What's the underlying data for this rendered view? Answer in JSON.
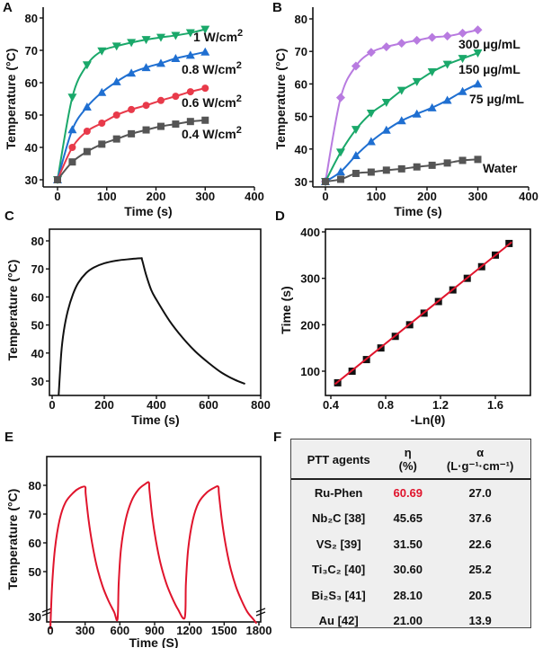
{
  "colors": {
    "green": "#1aa86a",
    "blue": "#1f6fd1",
    "red": "#e83a4a",
    "gray": "#555555",
    "purple": "#b87be0",
    "black": "#111111",
    "fit": "#e0142c",
    "highlight": "#e0142c"
  },
  "panel_labels": [
    "A",
    "B",
    "C",
    "D",
    "E",
    "F"
  ],
  "chart_data": [
    {
      "id": "A",
      "type": "line",
      "xlabel": "Time (s)",
      "ylabel": "Temperature (°C)",
      "xlim": [
        0,
        400
      ],
      "ylim": [
        30,
        80
      ],
      "xticks": [
        0,
        100,
        200,
        300,
        400
      ],
      "yticks": [
        30,
        40,
        50,
        60,
        70,
        80
      ],
      "x": [
        0,
        30,
        60,
        90,
        120,
        150,
        180,
        210,
        240,
        270,
        300
      ],
      "series": [
        {
          "name": "1 W/cm2",
          "color": "green",
          "marker": "tri-down",
          "values": [
            30,
            55.5,
            65.5,
            69.8,
            71.3,
            72.4,
            73.3,
            74,
            74.6,
            75.4,
            76.5
          ]
        },
        {
          "name": "0.8 W/cm2",
          "color": "blue",
          "marker": "tri-up",
          "values": [
            30,
            45.5,
            52.5,
            57,
            60.3,
            63,
            64.7,
            66,
            67.5,
            68.5,
            69.5
          ]
        },
        {
          "name": "0.6 W/cm2",
          "color": "red",
          "marker": "circle",
          "values": [
            30,
            40,
            45,
            47.5,
            50,
            51.7,
            53,
            54.5,
            55.8,
            57.2,
            58.3
          ]
        },
        {
          "name": "0.4 W/cm2",
          "color": "gray",
          "marker": "square",
          "values": [
            30,
            35.5,
            38.7,
            41,
            42.6,
            44.2,
            45.4,
            46.5,
            47.2,
            48,
            48.4
          ]
        }
      ]
    },
    {
      "id": "B",
      "type": "line",
      "xlabel": "Time (s)",
      "ylabel": "Temperature (°C)",
      "xlim": [
        0,
        400
      ],
      "ylim": [
        30,
        80
      ],
      "xticks": [
        0,
        100,
        200,
        300,
        400
      ],
      "yticks": [
        30,
        40,
        50,
        60,
        70,
        80
      ],
      "x": [
        0,
        30,
        60,
        90,
        120,
        150,
        180,
        210,
        240,
        270,
        300
      ],
      "series": [
        {
          "name": "300 µg/mL",
          "color": "purple",
          "marker": "diamond",
          "values": [
            30,
            55.8,
            65.5,
            69.7,
            71.4,
            72.5,
            73.4,
            74.3,
            74.7,
            75.6,
            76.6
          ]
        },
        {
          "name": "150 µg/mL",
          "color": "green",
          "marker": "tri-down",
          "values": [
            30,
            39,
            46,
            51,
            54.3,
            58,
            60.7,
            63.7,
            66,
            67.8,
            69.5
          ]
        },
        {
          "name": "75 µg/mL",
          "color": "blue",
          "marker": "tri-up",
          "values": [
            30,
            33,
            38,
            42.3,
            45.8,
            48.7,
            50.8,
            52.7,
            55,
            57.7,
            60
          ]
        },
        {
          "name": "Water",
          "color": "gray",
          "marker": "square",
          "values": [
            30,
            30.7,
            32.5,
            32.9,
            33.5,
            33.9,
            34.5,
            35,
            35.7,
            36.5,
            36.8
          ]
        }
      ]
    },
    {
      "id": "C",
      "type": "line",
      "xlabel": "Time (s)",
      "ylabel": "Temperature (°C)",
      "xlim": [
        0,
        800
      ],
      "ylim": [
        30,
        80
      ],
      "xticks": [
        0,
        200,
        400,
        600,
        800
      ],
      "yticks": [
        30,
        40,
        50,
        60,
        70,
        80
      ],
      "series": [
        {
          "name": "heating-cooling",
          "color": "black",
          "points": [
            [
              25,
              25
            ],
            [
              35,
              40
            ],
            [
              45,
              48
            ],
            [
              60,
              55
            ],
            [
              80,
              61
            ],
            [
              100,
              65
            ],
            [
              130,
              68.5
            ],
            [
              160,
              70.5
            ],
            [
              200,
              72
            ],
            [
              250,
              73
            ],
            [
              300,
              73.5
            ],
            [
              340,
              73.8
            ],
            [
              345,
              73.2
            ],
            [
              360,
              68
            ],
            [
              380,
              62.5
            ],
            [
              400,
              59
            ],
            [
              450,
              51.5
            ],
            [
              500,
              45.5
            ],
            [
              550,
              40.5
            ],
            [
              600,
              36.5
            ],
            [
              650,
              33
            ],
            [
              700,
              30.5
            ],
            [
              740,
              29
            ]
          ]
        }
      ]
    },
    {
      "id": "D",
      "type": "scatter",
      "xlabel": "-Ln(θ)",
      "ylabel": "Time (s)",
      "xlim": [
        0.36,
        1.82
      ],
      "ylim": [
        60,
        400
      ],
      "xticks": [
        0.4,
        0.8,
        1.2,
        1.6
      ],
      "yticks": [
        100,
        200,
        300,
        400
      ],
      "series": [
        {
          "name": "data",
          "color": "black",
          "marker": "square",
          "x": [
            0.45,
            0.555,
            0.66,
            0.765,
            0.87,
            0.975,
            1.08,
            1.185,
            1.29,
            1.395,
            1.5,
            1.6,
            1.7
          ],
          "values": [
            75,
            100,
            125,
            150,
            175,
            200,
            225,
            250,
            275,
            300,
            325,
            350,
            375
          ]
        },
        {
          "name": "linear fit",
          "color": "fit",
          "points": [
            [
              0.43,
              72
            ],
            [
              1.72,
              378
            ]
          ]
        }
      ]
    },
    {
      "id": "E",
      "type": "line",
      "xlabel": "Time (S)",
      "ylabel": "Temperature (°C)",
      "xlim": [
        0,
        1800
      ],
      "ylim": [
        30,
        80
      ],
      "xticks": [
        0,
        300,
        600,
        900,
        1200,
        1500,
        1800
      ],
      "yticks": [
        30,
        50,
        60,
        70,
        80
      ],
      "series": [
        {
          "name": "cycles",
          "color": "fit",
          "points": [
            [
              0,
              30
            ],
            [
              15,
              45
            ],
            [
              40,
              58
            ],
            [
              80,
              68
            ],
            [
              130,
              74
            ],
            [
              200,
              77.5
            ],
            [
              250,
              79
            ],
            [
              300,
              79.5
            ],
            [
              305,
              77
            ],
            [
              330,
              68
            ],
            [
              360,
              60
            ],
            [
              400,
              52
            ],
            [
              450,
              45
            ],
            [
              500,
              40
            ],
            [
              550,
              36
            ],
            [
              580,
              33.5
            ],
            [
              590,
              46
            ],
            [
              610,
              58
            ],
            [
              650,
              68
            ],
            [
              700,
              74.5
            ],
            [
              760,
              78.5
            ],
            [
              820,
              80.5
            ],
            [
              850,
              81
            ],
            [
              855,
              78.5
            ],
            [
              880,
              69
            ],
            [
              910,
              61
            ],
            [
              950,
              53
            ],
            [
              1000,
              46
            ],
            [
              1050,
              41
            ],
            [
              1100,
              37
            ],
            [
              1160,
              34
            ],
            [
              1170,
              46
            ],
            [
              1190,
              58
            ],
            [
              1230,
              68
            ],
            [
              1280,
              74
            ],
            [
              1350,
              77.5
            ],
            [
              1420,
              79.3
            ],
            [
              1450,
              79.5
            ],
            [
              1455,
              77
            ],
            [
              1480,
              68
            ],
            [
              1510,
              60
            ],
            [
              1550,
              52
            ],
            [
              1600,
              45
            ],
            [
              1650,
              40
            ],
            [
              1700,
              36
            ],
            [
              1750,
              33.5
            ],
            [
              1780,
              32
            ]
          ]
        }
      ]
    }
  ],
  "table": {
    "headers": [
      {
        "line1": "PTT agents",
        "line2": ""
      },
      {
        "line1": "η",
        "line2": "(%)"
      },
      {
        "line1": "α",
        "line2": "(L·g⁻¹·cm⁻¹)"
      }
    ],
    "rows": [
      {
        "agent": "Ru-Phen",
        "eta": "60.69",
        "alpha": "27.0"
      },
      {
        "agent": "Nb₂C  [38]",
        "eta": "45.65",
        "alpha": "37.6"
      },
      {
        "agent": "VS₂  [39]",
        "eta": "31.50",
        "alpha": "22.6"
      },
      {
        "agent": "Ti₃C₂  [40]",
        "eta": "30.60",
        "alpha": "25.2"
      },
      {
        "agent": "Bi₂S₃  [41]",
        "eta": "28.10",
        "alpha": "20.5"
      },
      {
        "agent": "Au  [42]",
        "eta": "21.00",
        "alpha": "13.9"
      }
    ]
  }
}
